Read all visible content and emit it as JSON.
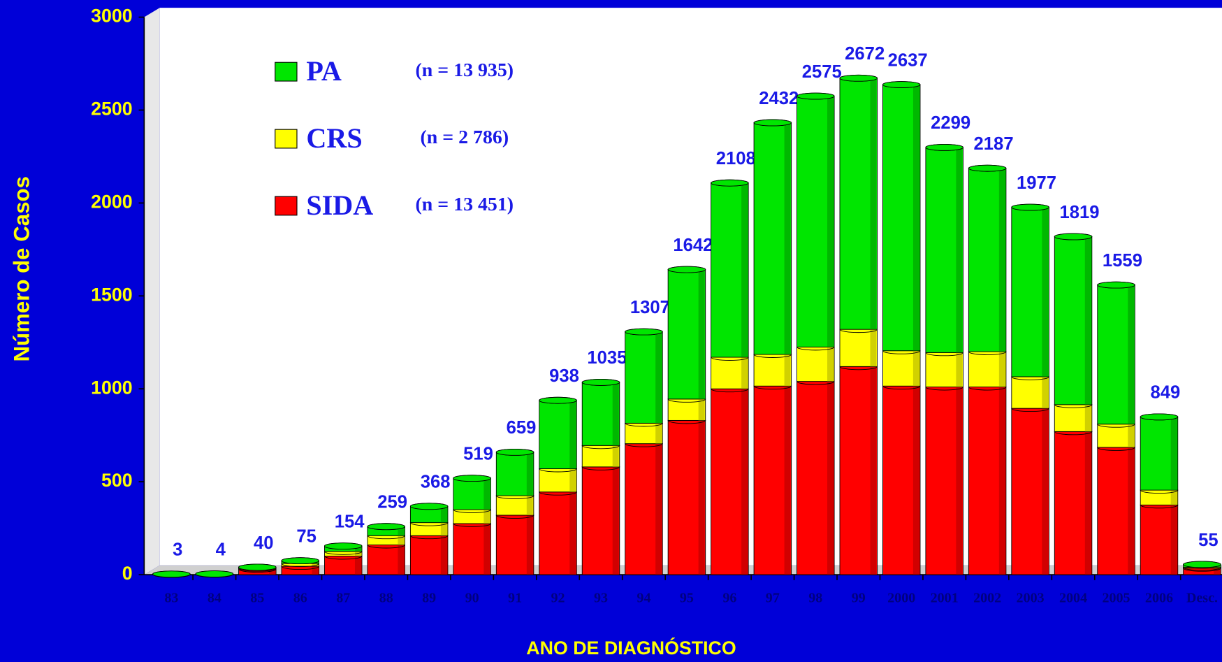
{
  "chart_data": {
    "type": "bar",
    "stacked": true,
    "y_label": "Número de Casos",
    "x_label": "ANO DE DIAGNÓSTICO",
    "categories": [
      "83",
      "84",
      "85",
      "86",
      "87",
      "88",
      "89",
      "90",
      "91",
      "92",
      "93",
      "94",
      "95",
      "96",
      "97",
      "98",
      "99",
      "2000",
      "2001",
      "2002",
      "2003",
      "2004",
      "2005",
      "2006",
      "Desc."
    ],
    "series": [
      {
        "name": "SIDA",
        "n_label": "(n = 13 451)",
        "color": "#ff0000",
        "values": [
          2,
          3,
          30,
          45,
          100,
          160,
          210,
          275,
          320,
          445,
          580,
          705,
          830,
          1000,
          1015,
          1040,
          1120,
          1015,
          1010,
          1010,
          895,
          770,
          685,
          375,
          35
        ]
      },
      {
        "name": "CRS",
        "n_label": "(n = 2 786)",
        "color": "#ffff00",
        "values": [
          0,
          0,
          5,
          15,
          25,
          50,
          70,
          75,
          105,
          125,
          115,
          110,
          115,
          170,
          170,
          185,
          200,
          190,
          185,
          190,
          170,
          145,
          125,
          80,
          5
        ]
      },
      {
        "name": "PA",
        "n_label": "(n = 13 935)",
        "color": "#00e600",
        "values": [
          1,
          1,
          5,
          15,
          29,
          49,
          88,
          169,
          234,
          368,
          340,
          492,
          697,
          938,
          1247,
          1350,
          1352,
          1432,
          1104,
          987,
          912,
          904,
          749,
          394,
          15
        ]
      }
    ],
    "totals": [
      3,
      4,
      40,
      75,
      154,
      259,
      368,
      519,
      659,
      938,
      1035,
      1307,
      1642,
      2108,
      2432,
      2575,
      2672,
      2637,
      2299,
      2187,
      1977,
      1819,
      1559,
      849,
      55
    ],
    "ylim": [
      0,
      3000
    ],
    "yticks": [
      0,
      500,
      1000,
      1500,
      2000,
      2500,
      3000
    ],
    "grid": false
  }
}
